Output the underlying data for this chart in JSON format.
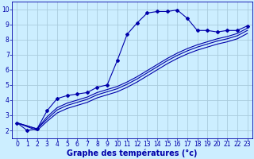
{
  "background_color": "#cceeff",
  "grid_color": "#aaccdd",
  "line_color": "#0000aa",
  "xlabel": "Graphe des températures (°c)",
  "xlabel_color": "#0000aa",
  "xlabel_fontsize": 7,
  "tick_color": "#0000aa",
  "tick_fontsize": 5.5,
  "xlim": [
    -0.5,
    23.5
  ],
  "ylim": [
    1.5,
    10.5
  ],
  "yticks": [
    2,
    3,
    4,
    5,
    6,
    7,
    8,
    9,
    10
  ],
  "xticks": [
    0,
    1,
    2,
    3,
    4,
    5,
    6,
    7,
    8,
    9,
    10,
    11,
    12,
    13,
    14,
    15,
    16,
    17,
    18,
    19,
    20,
    21,
    22,
    23
  ],
  "curve1_x": [
    0,
    1,
    2,
    3,
    4,
    5,
    6,
    7,
    8,
    9,
    10,
    11,
    12,
    13,
    14,
    15,
    16,
    17,
    18,
    19,
    20,
    21,
    22,
    23
  ],
  "curve1_y": [
    2.5,
    2.0,
    2.1,
    3.3,
    4.1,
    4.3,
    4.4,
    4.5,
    4.85,
    5.0,
    6.6,
    8.35,
    9.1,
    9.75,
    9.85,
    9.85,
    9.95,
    9.4,
    8.6,
    8.6,
    8.5,
    8.6,
    8.6,
    8.9
  ],
  "curve2_x": [
    0,
    2,
    3,
    4,
    5,
    6,
    7,
    8,
    9,
    10,
    11,
    12,
    13,
    14,
    15,
    16,
    17,
    18,
    19,
    20,
    21,
    22,
    23
  ],
  "curve2_y": [
    2.5,
    2.1,
    2.9,
    3.5,
    3.8,
    4.0,
    4.2,
    4.5,
    4.7,
    4.9,
    5.2,
    5.55,
    5.95,
    6.35,
    6.75,
    7.1,
    7.4,
    7.65,
    7.85,
    8.05,
    8.2,
    8.4,
    8.75
  ],
  "curve3_x": [
    0,
    2,
    3,
    4,
    5,
    6,
    7,
    8,
    9,
    10,
    11,
    12,
    13,
    14,
    15,
    16,
    17,
    18,
    19,
    20,
    21,
    22,
    23
  ],
  "curve3_y": [
    2.5,
    2.1,
    2.75,
    3.35,
    3.65,
    3.85,
    4.05,
    4.35,
    4.55,
    4.75,
    5.05,
    5.4,
    5.8,
    6.2,
    6.6,
    6.95,
    7.25,
    7.5,
    7.7,
    7.9,
    8.05,
    8.25,
    8.6
  ],
  "curve4_x": [
    0,
    2,
    3,
    4,
    5,
    6,
    7,
    8,
    9,
    10,
    11,
    12,
    13,
    14,
    15,
    16,
    17,
    18,
    19,
    20,
    21,
    22,
    23
  ],
  "curve4_y": [
    2.5,
    2.0,
    2.6,
    3.15,
    3.45,
    3.65,
    3.85,
    4.15,
    4.35,
    4.55,
    4.85,
    5.2,
    5.6,
    6.0,
    6.4,
    6.75,
    7.05,
    7.3,
    7.5,
    7.7,
    7.85,
    8.05,
    8.4
  ]
}
